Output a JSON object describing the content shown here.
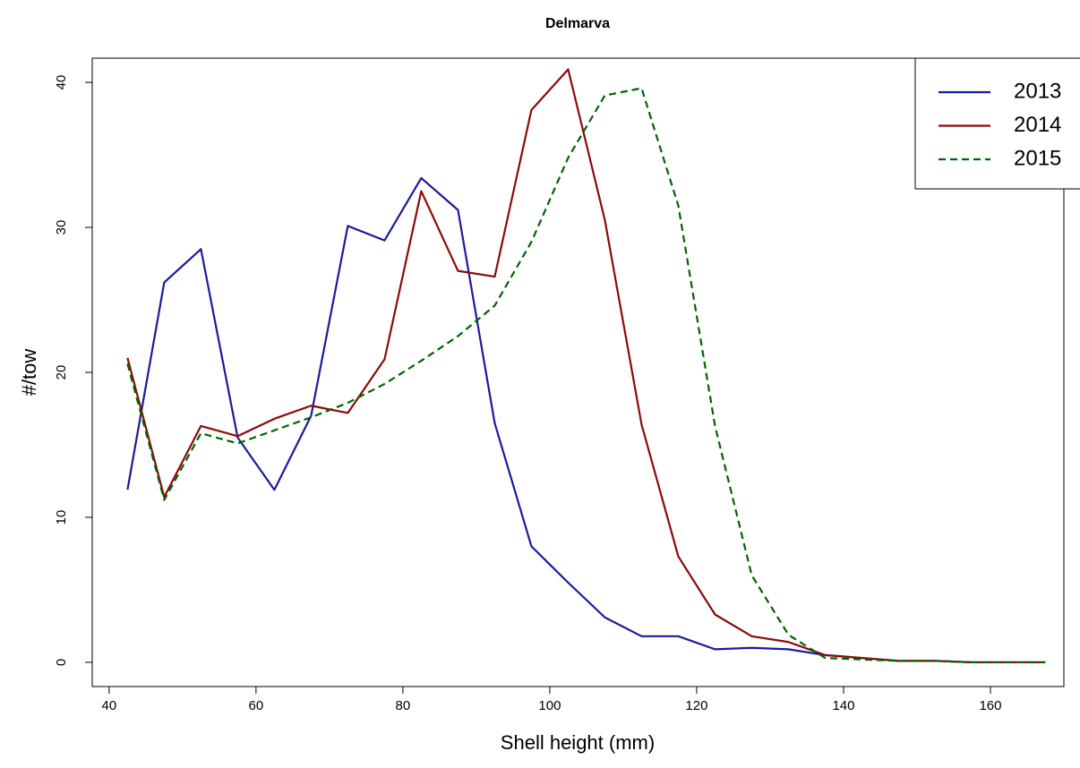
{
  "chart_data": {
    "type": "line",
    "title": "Delmarva",
    "x_label": "Shell height (mm)",
    "y_label": "#/tow",
    "x": [
      42.5,
      47.5,
      52.5,
      57.5,
      62.5,
      67.5,
      72.5,
      77.5,
      82.5,
      87.5,
      92.5,
      97.5,
      102.5,
      107.5,
      112.5,
      117.5,
      122.5,
      127.5,
      132.5,
      137.5,
      142.5,
      147.5,
      152.5,
      157.5,
      162.5,
      167.5
    ],
    "series": [
      {
        "name": "2013",
        "color": "#1a1a9c",
        "linestyle": "solid",
        "values": [
          11.9,
          26.2,
          28.5,
          15.5,
          11.9,
          17,
          30.1,
          29.1,
          33.4,
          31.2,
          16.5,
          8,
          5.5,
          3.1,
          1.8,
          1.8,
          0.9,
          1.0,
          0.9,
          0.5,
          0.3,
          0.1,
          0.1,
          0,
          0,
          0
        ]
      },
      {
        "name": "2014",
        "color": "#8b0a0a",
        "linestyle": "solid",
        "values": [
          21,
          11.4,
          16.3,
          15.6,
          16.8,
          17.7,
          17.2,
          20.9,
          32.5,
          27,
          26.6,
          38.1,
          40.9,
          30.5,
          16.4,
          7.3,
          3.3,
          1.8,
          1.4,
          0.5,
          0.3,
          0.1,
          0.1,
          0,
          0,
          0
        ]
      },
      {
        "name": "2015",
        "color": "#006400",
        "linestyle": "dashed",
        "values": [
          20.6,
          11.2,
          15.8,
          15.1,
          16,
          16.9,
          17.9,
          19.2,
          20.8,
          22.5,
          24.6,
          29,
          34.8,
          39.1,
          39.6,
          31.5,
          16.3,
          6,
          1.9,
          0.3,
          0.2,
          0.1,
          0.1,
          0,
          0,
          0
        ]
      }
    ],
    "xlim": [
      37.7,
      170
    ],
    "ylim": [
      -1.67,
      41.67
    ],
    "xticks": [
      40,
      60,
      80,
      100,
      120,
      140,
      160
    ],
    "yticks": [
      0,
      10,
      20,
      30,
      40
    ],
    "legend": "top-right"
  }
}
